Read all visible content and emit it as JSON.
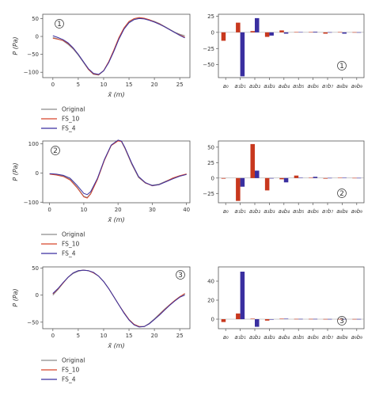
{
  "colors": {
    "original": "#8c8c8c",
    "fs10": "#d8442a",
    "fs4": "#3a2fa0",
    "bar_a": "#c8381e",
    "bar_b": "#3a2fa0",
    "axis": "#555555"
  },
  "legend": [
    "Original",
    "FS_10",
    "FS_4"
  ],
  "coef_labels": [
    "a₀",
    "a₁b₁",
    "a₂b₂",
    "a₃b₃",
    "a₄b₄",
    "a₅b₅",
    "a₆b₆",
    "a₇b₇",
    "a₈b₈",
    "a₉b₉"
  ],
  "xlabel": "x̃ (m)",
  "ylabel": "P (Pa)",
  "chart_data": [
    {
      "type": "line",
      "id": "①",
      "xlim": [
        -2,
        27
      ],
      "ylim": [
        -115,
        62
      ],
      "xticks": [
        0,
        5,
        10,
        15,
        20,
        25
      ],
      "yticks": [
        -100,
        -50,
        0,
        50
      ],
      "series": [
        {
          "name": "Original",
          "x": [
            0,
            1,
            2,
            3,
            4,
            5,
            6,
            7,
            8,
            9,
            10,
            11,
            12,
            13,
            14,
            15,
            16,
            17,
            18,
            19,
            20,
            21,
            22,
            23,
            24,
            25,
            26
          ],
          "y": [
            -3,
            -7,
            -12,
            -22,
            -35,
            -52,
            -72,
            -92,
            -106,
            -108,
            -96,
            -72,
            -40,
            -5,
            22,
            40,
            48,
            52,
            50,
            46,
            42,
            36,
            28,
            20,
            12,
            6,
            2
          ]
        },
        {
          "name": "FS_10",
          "x": [
            0,
            1,
            2,
            3,
            4,
            5,
            6,
            7,
            8,
            9,
            10,
            11,
            12,
            13,
            14,
            15,
            16,
            17,
            18,
            19,
            20,
            21,
            22,
            23,
            24,
            25,
            26
          ],
          "y": [
            -5,
            -8,
            -11,
            -20,
            -33,
            -50,
            -70,
            -92,
            -105,
            -107,
            -95,
            -70,
            -38,
            -3,
            24,
            42,
            50,
            53,
            51,
            47,
            41,
            35,
            27,
            19,
            11,
            4,
            -2
          ]
        },
        {
          "name": "FS_4",
          "x": [
            0,
            1,
            2,
            3,
            4,
            5,
            6,
            7,
            8,
            9,
            10,
            11,
            12,
            13,
            14,
            15,
            16,
            17,
            18,
            19,
            20,
            21,
            22,
            23,
            24,
            25,
            26
          ],
          "y": [
            2,
            -3,
            -9,
            -18,
            -32,
            -50,
            -70,
            -90,
            -103,
            -106,
            -96,
            -73,
            -42,
            -8,
            20,
            38,
            47,
            50,
            49,
            45,
            40,
            34,
            27,
            19,
            11,
            3,
            -4
          ]
        }
      ]
    },
    {
      "type": "bar",
      "id": "①",
      "ylim": [
        -70,
        28
      ],
      "yticks": [
        -50,
        -25,
        0,
        25
      ],
      "series": [
        {
          "name": "a",
          "values": [
            -13,
            15,
            2,
            -7,
            3,
            0.5,
            0.5,
            -2,
            0.5,
            0.3
          ]
        },
        {
          "name": "b",
          "values": [
            0,
            -68,
            22,
            -5,
            -2,
            0.5,
            1,
            0.3,
            -2,
            0.2
          ]
        }
      ]
    },
    {
      "type": "line",
      "id": "②",
      "xlim": [
        -2,
        41
      ],
      "ylim": [
        -102,
        110
      ],
      "xticks": [
        0,
        10,
        20,
        30,
        40
      ],
      "yticks": [
        -100,
        0,
        100
      ],
      "series": [
        {
          "name": "Original",
          "x": [
            0,
            2,
            4,
            6,
            8,
            10,
            11,
            12,
            14,
            16,
            18,
            20,
            21,
            22,
            24,
            26,
            28,
            30,
            32,
            34,
            36,
            38,
            40
          ],
          "y": [
            -3,
            -5,
            -10,
            -22,
            -48,
            -80,
            -84,
            -70,
            -20,
            45,
            95,
            112,
            108,
            85,
            30,
            -15,
            -35,
            -42,
            -38,
            -28,
            -18,
            -10,
            -4
          ]
        },
        {
          "name": "FS_10",
          "x": [
            0,
            2,
            4,
            6,
            8,
            10,
            11,
            12,
            14,
            16,
            18,
            20,
            21,
            22,
            24,
            26,
            28,
            30,
            32,
            34,
            36,
            38,
            40
          ],
          "y": [
            -4,
            -7,
            -12,
            -24,
            -50,
            -82,
            -86,
            -72,
            -22,
            43,
            94,
            110,
            108,
            86,
            32,
            -13,
            -34,
            -44,
            -40,
            -29,
            -17,
            -9,
            -3
          ]
        },
        {
          "name": "FS_4",
          "x": [
            0,
            2,
            4,
            6,
            8,
            10,
            11,
            12,
            14,
            16,
            18,
            20,
            21,
            22,
            24,
            26,
            28,
            30,
            32,
            34,
            36,
            38,
            40
          ],
          "y": [
            -2,
            -4,
            -8,
            -18,
            -42,
            -70,
            -74,
            -64,
            -18,
            46,
            96,
            113,
            110,
            88,
            34,
            -12,
            -33,
            -43,
            -40,
            -30,
            -20,
            -11,
            -5
          ]
        }
      ]
    },
    {
      "type": "bar",
      "id": "②",
      "ylim": [
        -40,
        60
      ],
      "yticks": [
        -25,
        0,
        25,
        50
      ],
      "series": [
        {
          "name": "a",
          "values": [
            -1,
            -37,
            55,
            -20,
            -2,
            4,
            0.5,
            -1,
            0.5,
            0.3
          ]
        },
        {
          "name": "b",
          "values": [
            0,
            -14,
            12,
            0,
            -7,
            0.5,
            2,
            0.3,
            0.5,
            0.3
          ]
        }
      ]
    },
    {
      "type": "line",
      "id": "③",
      "xlim": [
        -2,
        27
      ],
      "ylim": [
        -62,
        52
      ],
      "xticks": [
        0,
        5,
        10,
        15,
        20,
        25
      ],
      "yticks": [
        -50,
        0,
        50
      ],
      "series": [
        {
          "name": "Original",
          "x": [
            0,
            1,
            2,
            3,
            4,
            5,
            6,
            7,
            8,
            9,
            10,
            11,
            12,
            13,
            14,
            15,
            16,
            17,
            18,
            19,
            20,
            21,
            22,
            23,
            24,
            25,
            26
          ],
          "y": [
            0,
            10,
            22,
            33,
            40,
            44,
            46,
            45,
            41,
            35,
            25,
            12,
            -3,
            -18,
            -32,
            -45,
            -54,
            -58,
            -58,
            -52,
            -44,
            -35,
            -26,
            -18,
            -10,
            -3,
            2
          ]
        },
        {
          "name": "FS_10",
          "x": [
            0,
            1,
            2,
            3,
            4,
            5,
            6,
            7,
            8,
            9,
            10,
            11,
            12,
            13,
            14,
            15,
            16,
            17,
            18,
            19,
            20,
            21,
            22,
            23,
            24,
            25,
            26
          ],
          "y": [
            2,
            11,
            22,
            33,
            41,
            45,
            46,
            45,
            41,
            35,
            25,
            12,
            -3,
            -18,
            -32,
            -45,
            -54,
            -58,
            -58,
            -53,
            -45,
            -36,
            -27,
            -18,
            -10,
            -3,
            3
          ]
        },
        {
          "name": "FS_4",
          "x": [
            0,
            1,
            2,
            3,
            4,
            5,
            6,
            7,
            8,
            9,
            10,
            11,
            12,
            13,
            14,
            15,
            16,
            17,
            18,
            19,
            20,
            21,
            22,
            23,
            24,
            25,
            26
          ],
          "y": [
            3,
            12,
            23,
            33,
            41,
            45,
            46,
            45,
            42,
            35,
            25,
            12,
            -3,
            -18,
            -33,
            -46,
            -55,
            -59,
            -58,
            -53,
            -45,
            -37,
            -28,
            -19,
            -11,
            -4,
            0
          ]
        }
      ]
    },
    {
      "type": "bar",
      "id": "③",
      "ylim": [
        -10,
        55
      ],
      "yticks": [
        0,
        20,
        40
      ],
      "series": [
        {
          "name": "a",
          "values": [
            -3,
            6,
            0.5,
            -1.5,
            0.5,
            0.3,
            0.3,
            0.2,
            0.2,
            0.2
          ]
        },
        {
          "name": "b",
          "values": [
            0,
            50,
            -8,
            0,
            0.5,
            0.3,
            0.3,
            0.2,
            0.2,
            0.2
          ]
        }
      ]
    }
  ]
}
